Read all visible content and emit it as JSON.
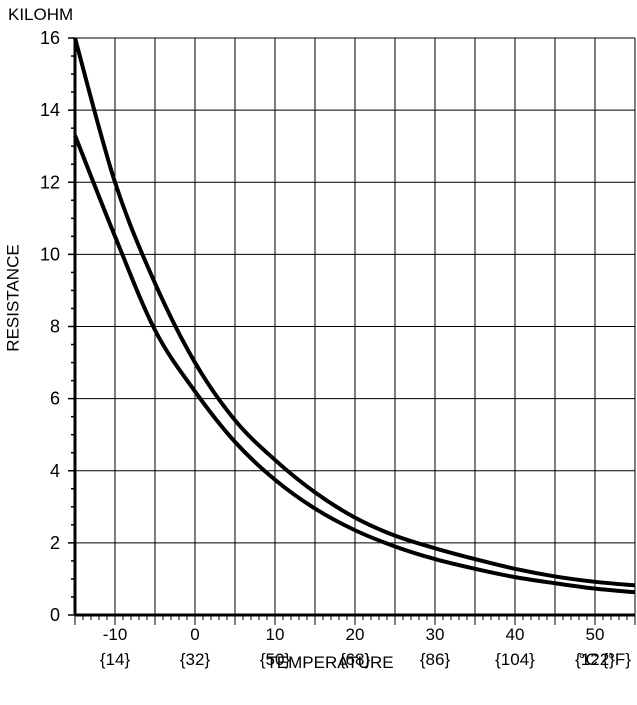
{
  "chart_data": {
    "type": "line",
    "title": "",
    "ylabel": "RESISTANCE",
    "y_unit": "KILOHM",
    "xlabel": "TEMPERATURE",
    "x_unit": "°C {°F}",
    "xlim": [
      -15,
      55
    ],
    "ylim": [
      0,
      16
    ],
    "grid": true,
    "x_ticks": [
      {
        "value": -10,
        "label": "-10",
        "label2": "{14}"
      },
      {
        "value": 0,
        "label": "0",
        "label2": "{32}"
      },
      {
        "value": 10,
        "label": "10",
        "label2": "{50}"
      },
      {
        "value": 20,
        "label": "20",
        "label2": "{68}"
      },
      {
        "value": 30,
        "label": "30",
        "label2": "{86}"
      },
      {
        "value": 40,
        "label": "40",
        "label2": "{104}"
      },
      {
        "value": 50,
        "label": "50",
        "label2": "{122}"
      }
    ],
    "y_ticks": [
      0,
      2,
      4,
      6,
      8,
      10,
      12,
      14,
      16
    ],
    "series": [
      {
        "x": [
          -15,
          -10,
          -5,
          0,
          5,
          10,
          15,
          20,
          25,
          30,
          35,
          40,
          45,
          50,
          55
        ],
        "y": [
          16.0,
          12.0,
          9.2,
          7.0,
          5.4,
          4.3,
          3.4,
          2.7,
          2.2,
          1.85,
          1.55,
          1.28,
          1.07,
          0.92,
          0.82
        ]
      },
      {
        "x": [
          -15,
          -10,
          -5,
          0,
          5,
          10,
          15,
          20,
          25,
          30,
          35,
          40,
          45,
          50,
          55
        ],
        "y": [
          13.3,
          10.5,
          7.9,
          6.2,
          4.8,
          3.75,
          2.95,
          2.35,
          1.9,
          1.55,
          1.28,
          1.05,
          0.88,
          0.73,
          0.63
        ]
      }
    ]
  }
}
